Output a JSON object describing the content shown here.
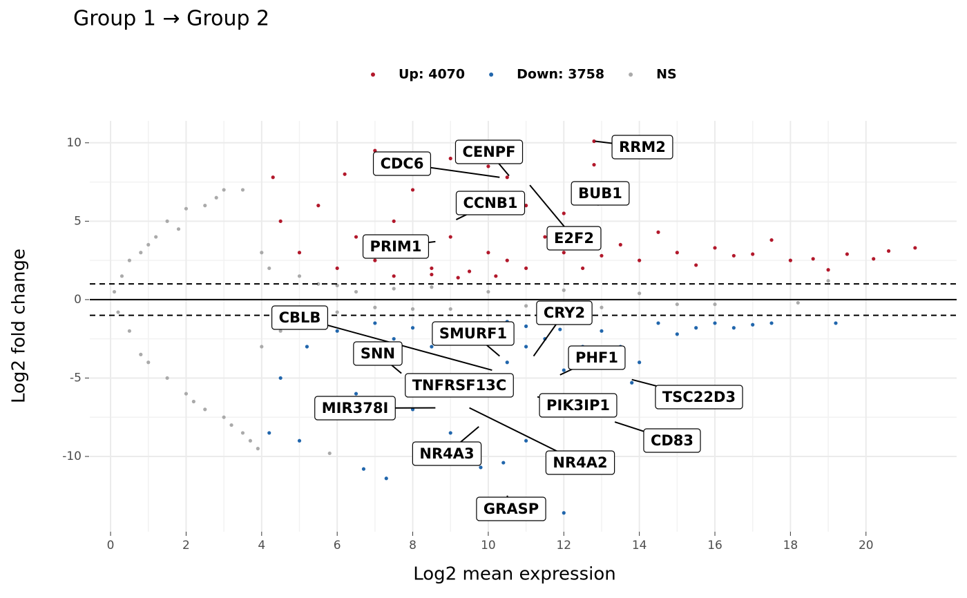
{
  "chart_data": {
    "type": "scatter",
    "title": "Group 1 → Group 2",
    "x_label": "Log2 mean expression",
    "y_label": "Log2 fold change",
    "legend_position": "top",
    "grid": true,
    "xlim": [
      -0.55,
      22.4
    ],
    "ylim": [
      -14.8,
      11.4
    ],
    "xticks": [
      0,
      2,
      4,
      6,
      8,
      10,
      12,
      14,
      16,
      18,
      20
    ],
    "yticks": [
      -10,
      -5,
      0,
      5,
      10
    ],
    "hlines": [
      {
        "y": 0,
        "style": "solid"
      },
      {
        "y": 1,
        "style": "dashed"
      },
      {
        "y": -1,
        "style": "dashed"
      }
    ],
    "series": [
      {
        "name": "Up: 4070",
        "color": "#b2182b",
        "x": [
          4.3,
          4.5,
          5,
          5.5,
          6,
          6.2,
          6.5,
          7,
          7,
          7.5,
          8,
          8,
          8.5,
          9,
          9,
          9.5,
          9.5,
          10,
          10,
          10.5,
          10.5,
          11,
          11,
          11.5,
          12,
          12,
          12.5,
          12.8,
          12.8,
          13,
          13.5,
          14,
          14.5,
          15,
          15.5,
          16,
          16.5,
          17,
          17.5,
          18,
          18.6,
          19,
          19.5,
          20.2,
          20.6,
          21.3,
          7.5,
          8.5,
          9.2,
          10.2
        ],
        "y": [
          7.8,
          5,
          3,
          6,
          2,
          8,
          4,
          9.5,
          2.5,
          5,
          3,
          7,
          2,
          9,
          4,
          10,
          1.8,
          8.5,
          3,
          7.8,
          2.5,
          6,
          2,
          4,
          3,
          5.5,
          2,
          10.1,
          8.6,
          2.8,
          3.5,
          2.5,
          4.3,
          3,
          2.2,
          3.3,
          2.8,
          2.9,
          3.8,
          2.5,
          2.6,
          1.9,
          2.9,
          2.6,
          3.1,
          3.3,
          1.5,
          1.6,
          1.4,
          1.5
        ]
      },
      {
        "name": "Down: 3758",
        "color": "#2166ac",
        "x": [
          4.2,
          4.5,
          5,
          5.2,
          5.5,
          6,
          6.5,
          6.7,
          7,
          7.3,
          7.5,
          8,
          8.5,
          9,
          9.5,
          9.8,
          10,
          10.4,
          10.5,
          11,
          11,
          11.5,
          12,
          12,
          12.5,
          13,
          13.5,
          13.8,
          14,
          14.5,
          15,
          15.5,
          16,
          16.5,
          17,
          17.5,
          19.2,
          7,
          8,
          9,
          10.5,
          11,
          11.9
        ],
        "y": [
          -8.5,
          -5,
          -9,
          -3,
          -7,
          -2,
          -6,
          -10.8,
          -4,
          -11.4,
          -2.5,
          -7,
          -3,
          -8.5,
          -5,
          -10.7,
          -2,
          -10.4,
          -4,
          -3,
          -9,
          -2.5,
          -13.6,
          -4.5,
          -3,
          -2,
          -3,
          -5.3,
          -4,
          -1.5,
          -2.2,
          -1.8,
          -1.5,
          -1.8,
          -1.6,
          -1.5,
          -1.5,
          -1.5,
          -1.8,
          -1.6,
          -1.4,
          -1.7,
          -1.9
        ]
      },
      {
        "name": "NS",
        "color": "#aaaaaa",
        "x": [
          0.1,
          0.2,
          0.3,
          0.5,
          0.5,
          0.8,
          0.8,
          1,
          1,
          1.2,
          1.5,
          1.5,
          1.8,
          2,
          2,
          2.2,
          2.5,
          2.5,
          2.8,
          3,
          3,
          3.2,
          3.5,
          3.5,
          3.7,
          3.9,
          4,
          4,
          4.2,
          4.5,
          5,
          5,
          5.5,
          6,
          6,
          6.5,
          7,
          7.5,
          8,
          8.5,
          9,
          10,
          11,
          12,
          13,
          14,
          15,
          16,
          18.2,
          19,
          5.8
        ],
        "y": [
          0.5,
          -0.8,
          1.5,
          -2,
          2.5,
          3,
          -3.5,
          3.5,
          -4,
          4,
          -5,
          5,
          4.5,
          -6,
          5.8,
          -6.5,
          6,
          -7,
          6.5,
          7,
          -7.5,
          -8,
          7,
          -8.5,
          -9,
          -9.5,
          3,
          -3,
          2,
          -2,
          1.5,
          -1,
          1,
          -0.8,
          0.9,
          0.5,
          -0.5,
          0.7,
          -0.6,
          0.8,
          -0.6,
          0.5,
          -0.4,
          0.6,
          -0.5,
          0.4,
          -0.3,
          -0.3,
          -0.2,
          1.2,
          -9.8
        ]
      }
    ],
    "labels": [
      {
        "text": "RRM2",
        "x": 12.83,
        "y": 10.1
      },
      {
        "text": "CENPF",
        "x": 10.55,
        "y": 7.9
      },
      {
        "text": "CDC6",
        "x": 10.3,
        "y": 7.8
      },
      {
        "text": "BUB1",
        "x": 12.9,
        "y": 6.0
      },
      {
        "text": "CCNB1",
        "x": 9.15,
        "y": 5.1
      },
      {
        "text": "E2F2",
        "x": 11.1,
        "y": 7.3
      },
      {
        "text": "PRIM1",
        "x": 8.6,
        "y": 3.7
      },
      {
        "text": "CBLB",
        "x": 10.1,
        "y": -4.5
      },
      {
        "text": "CRY2",
        "x": 11.2,
        "y": -3.6
      },
      {
        "text": "SMURF1",
        "x": 10.3,
        "y": -3.6
      },
      {
        "text": "SNN",
        "x": 7.7,
        "y": -4.7
      },
      {
        "text": "PHF1",
        "x": 11.9,
        "y": -4.8
      },
      {
        "text": "TNFRSF13C",
        "x": 8.0,
        "y": -4.9
      },
      {
        "text": "TSC22D3",
        "x": 13.8,
        "y": -5.1
      },
      {
        "text": "PIK3IP1",
        "x": 11.3,
        "y": -6.2
      },
      {
        "text": "MIR378I",
        "x": 8.6,
        "y": -6.9
      },
      {
        "text": "CD83",
        "x": 13.35,
        "y": -7.8
      },
      {
        "text": "NR4A3",
        "x": 9.75,
        "y": -8.1
      },
      {
        "text": "NR4A2",
        "x": 9.5,
        "y": -6.9
      },
      {
        "text": "GRASP",
        "x": 10.5,
        "y": -12.5
      }
    ]
  }
}
